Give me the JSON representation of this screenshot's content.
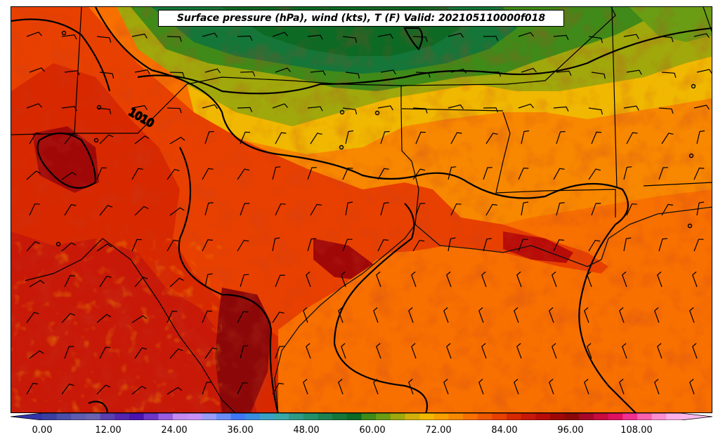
{
  "title": "Surface pressure (hPa), wind (kts), T (F) Valid: 202105110000f018",
  "contour_label": "1010",
  "colorbar": {
    "ticks": [
      "0.00",
      "12.00",
      "24.00",
      "36.00",
      "48.00",
      "60.00",
      "72.00",
      "84.00",
      "96.00",
      "108.00"
    ],
    "colors": [
      "#3a3fa0",
      "#4b4ea8",
      "#5d5cb0",
      "#6b63b0",
      "#5a3fb0",
      "#5426b0",
      "#4b14b0",
      "#6f34c8",
      "#9a5de0",
      "#c48af0",
      "#c890f5",
      "#9a9cf8",
      "#6a8ef8",
      "#3f78f5",
      "#3a8ee0",
      "#3aa0c8",
      "#3aa8a8",
      "#2f9a86",
      "#24906a",
      "#1c8250",
      "#147638",
      "#0c6a24",
      "#3f8a18",
      "#6a9c14",
      "#a0a80c",
      "#d2b00a",
      "#f0b800",
      "#f8a000",
      "#f88800",
      "#f87000",
      "#f05800",
      "#e84000",
      "#d82800",
      "#c81808",
      "#b80c08",
      "#a00808",
      "#8c0808",
      "#a80828",
      "#c80c40",
      "#e01060",
      "#f03090",
      "#f860b0",
      "#fc8ed0",
      "#ffb0e8"
    ],
    "min_color": "#3333aa",
    "max_color": "#ffb8ec"
  },
  "legend": {
    "units": "T (F)"
  }
}
